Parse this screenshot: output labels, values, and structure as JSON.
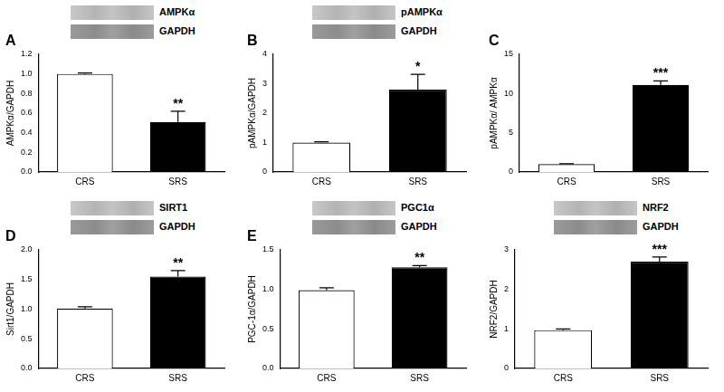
{
  "chart_data": [
    {
      "type": "bar",
      "panel_label": "A",
      "blot_labels": [
        "AMPKα",
        "GAPDH"
      ],
      "y_label": "AMPKα/GAPDH",
      "categories": [
        "CRS",
        "SRS"
      ],
      "values": [
        1.0,
        0.51
      ],
      "errors": [
        0.01,
        0.11
      ],
      "significance": [
        null,
        "**"
      ],
      "colors": [
        "#ffffff",
        "#000000"
      ],
      "ylim": [
        0,
        1.2
      ],
      "yticks": [
        {
          "value": 0,
          "label": "0.0"
        },
        0.2,
        0.4,
        0.6,
        0.8,
        {
          "value": 1,
          "label": "1.0"
        },
        1.2
      ],
      "grid": false
    },
    {
      "type": "bar",
      "panel_label": "B",
      "blot_labels": [
        "pAMPKα",
        "GAPDH"
      ],
      "y_label": "pAMPKα/GAPDH",
      "categories": [
        "CRS",
        "SRS"
      ],
      "values": [
        1.0,
        2.8
      ],
      "errors": [
        0.03,
        0.52
      ],
      "significance": [
        null,
        "*"
      ],
      "colors": [
        "#ffffff",
        "#000000"
      ],
      "ylim": [
        0,
        4
      ],
      "yticks": [
        0,
        1,
        2,
        3,
        4
      ],
      "grid": false
    },
    {
      "type": "bar",
      "panel_label": "C",
      "y_label": "pAMPKα/ AMPKα",
      "categories": [
        "CRS",
        "SRS"
      ],
      "values": [
        1.0,
        11.1
      ],
      "errors": [
        0.05,
        0.5
      ],
      "significance": [
        null,
        "***"
      ],
      "colors": [
        "#ffffff",
        "#000000"
      ],
      "ylim": [
        0,
        15
      ],
      "yticks": [
        0,
        5,
        10,
        15
      ],
      "grid": false
    },
    {
      "type": "bar",
      "panel_label": "D",
      "blot_labels": [
        "SIRT1",
        "GAPDH"
      ],
      "y_label": "Sirt1/GAPDH",
      "categories": [
        "CRS",
        "SRS"
      ],
      "values": [
        1.01,
        1.55
      ],
      "errors": [
        0.03,
        0.1
      ],
      "significance": [
        null,
        "**"
      ],
      "colors": [
        "#ffffff",
        "#000000"
      ],
      "ylim": [
        0,
        2
      ],
      "yticks": [
        {
          "value": 0,
          "label": "0.0"
        },
        0.5,
        {
          "value": 1,
          "label": "1.0"
        },
        1.5,
        {
          "value": 2,
          "label": "2.0"
        }
      ],
      "grid": false
    },
    {
      "type": "bar",
      "panel_label": "E",
      "blot_labels": [
        "PGC1α",
        "GAPDH"
      ],
      "y_label": "PGC-1α/GAPDH",
      "categories": [
        "CRS",
        "SRS"
      ],
      "values": [
        0.99,
        1.28
      ],
      "errors": [
        0.03,
        0.02
      ],
      "significance": [
        null,
        "**"
      ],
      "colors": [
        "#ffffff",
        "#000000"
      ],
      "ylim": [
        0,
        1.5
      ],
      "yticks": [
        {
          "value": 0,
          "label": "0.0"
        },
        0.5,
        {
          "value": 1,
          "label": "1.0"
        },
        1.5
      ],
      "grid": false
    },
    {
      "type": "bar",
      "blot_labels": [
        "NRF2",
        "GAPDH"
      ],
      "y_label": "NRF2/GAPDH",
      "categories": [
        "CRS",
        "SRS"
      ],
      "values": [
        0.97,
        2.7
      ],
      "errors": [
        0.03,
        0.12
      ],
      "significance": [
        null,
        "***"
      ],
      "colors": [
        "#ffffff",
        "#000000"
      ],
      "ylim": [
        0,
        3
      ],
      "yticks": [
        0,
        1,
        2,
        3
      ],
      "grid": false
    }
  ]
}
